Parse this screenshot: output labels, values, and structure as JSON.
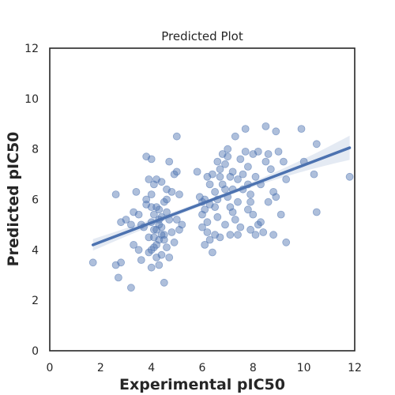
{
  "chart_data": {
    "type": "scatter",
    "title": "Predicted Plot",
    "xlabel": "Experimental pIC50",
    "ylabel": "Predicted pIC50",
    "xlim": [
      0,
      12
    ],
    "ylim": [
      0,
      12
    ],
    "xticks": [
      "0",
      "2",
      "4",
      "6",
      "8",
      "10",
      "12"
    ],
    "yticks": [
      "0",
      "2",
      "4",
      "6",
      "8",
      "10",
      "12"
    ],
    "grid": false,
    "colors": {
      "points": "#4c72b0",
      "line": "#4c72b0",
      "band": "#4c72b0"
    },
    "regression": {
      "x": [
        1.7,
        11.8
      ],
      "y": [
        4.2,
        8.05
      ],
      "ci_start": 0.15,
      "ci_end": 0.4
    },
    "points": [
      [
        1.7,
        3.5
      ],
      [
        2.6,
        6.2
      ],
      [
        2.8,
        5.1
      ],
      [
        2.8,
        3.5
      ],
      [
        2.6,
        3.4
      ],
      [
        2.7,
        2.9
      ],
      [
        3.0,
        5.2
      ],
      [
        3.2,
        5.0
      ],
      [
        3.2,
        2.5
      ],
      [
        3.3,
        4.2
      ],
      [
        3.3,
        5.5
      ],
      [
        3.4,
        6.3
      ],
      [
        3.5,
        5.4
      ],
      [
        3.5,
        4.0
      ],
      [
        3.6,
        3.6
      ],
      [
        3.7,
        4.9
      ],
      [
        3.8,
        5.8
      ],
      [
        3.9,
        4.5
      ],
      [
        3.9,
        3.9
      ],
      [
        3.8,
        7.7
      ],
      [
        3.9,
        6.8
      ],
      [
        4.0,
        5.1
      ],
      [
        4.0,
        7.6
      ],
      [
        4.0,
        3.3
      ],
      [
        4.0,
        6.2
      ],
      [
        4.1,
        6.6
      ],
      [
        4.1,
        4.5
      ],
      [
        4.2,
        4.8
      ],
      [
        4.3,
        5.0
      ],
      [
        4.3,
        5.6
      ],
      [
        4.2,
        4.2
      ],
      [
        4.4,
        4.6
      ],
      [
        4.4,
        4.9
      ],
      [
        4.4,
        5.3
      ],
      [
        4.5,
        5.9
      ],
      [
        4.5,
        4.4
      ],
      [
        4.5,
        2.7
      ],
      [
        4.6,
        6.0
      ],
      [
        4.6,
        4.1
      ],
      [
        4.7,
        5.2
      ],
      [
        4.6,
        5.5
      ],
      [
        4.7,
        3.7
      ],
      [
        4.8,
        4.7
      ],
      [
        4.8,
        6.3
      ],
      [
        4.9,
        7.0
      ],
      [
        4.9,
        4.3
      ],
      [
        5.0,
        8.5
      ],
      [
        5.0,
        7.1
      ],
      [
        5.0,
        5.2
      ],
      [
        5.1,
        4.8
      ],
      [
        5.1,
        6.2
      ],
      [
        5.2,
        5.0
      ],
      [
        4.3,
        4.4
      ],
      [
        4.2,
        5.7
      ],
      [
        4.1,
        4.1
      ],
      [
        4.4,
        3.8
      ],
      [
        4.3,
        3.4
      ],
      [
        4.6,
        6.4
      ],
      [
        4.7,
        7.5
      ],
      [
        3.8,
        6.0
      ],
      [
        4.0,
        5.7
      ],
      [
        4.1,
        5.4
      ],
      [
        4.2,
        6.8
      ],
      [
        3.6,
        5.0
      ],
      [
        4.3,
        5.2
      ],
      [
        4.4,
        6.7
      ],
      [
        4.5,
        4.6
      ],
      [
        4.2,
        3.7
      ],
      [
        4.0,
        4.0
      ],
      [
        4.1,
        4.8
      ],
      [
        5.8,
        7.1
      ],
      [
        5.9,
        6.1
      ],
      [
        6.0,
        5.4
      ],
      [
        6.0,
        4.9
      ],
      [
        6.1,
        6.0
      ],
      [
        6.1,
        4.2
      ],
      [
        6.2,
        5.1
      ],
      [
        6.2,
        4.7
      ],
      [
        6.3,
        6.6
      ],
      [
        6.3,
        5.8
      ],
      [
        6.4,
        7.0
      ],
      [
        6.4,
        3.9
      ],
      [
        6.5,
        5.7
      ],
      [
        6.5,
        6.3
      ],
      [
        6.6,
        7.5
      ],
      [
        6.6,
        5.3
      ],
      [
        6.7,
        4.5
      ],
      [
        6.7,
        6.9
      ],
      [
        6.8,
        7.8
      ],
      [
        6.8,
        6.6
      ],
      [
        6.9,
        5.0
      ],
      [
        6.9,
        7.4
      ],
      [
        7.0,
        6.1
      ],
      [
        7.0,
        8.0
      ],
      [
        7.1,
        4.6
      ],
      [
        7.1,
        5.7
      ],
      [
        7.2,
        6.4
      ],
      [
        7.2,
        7.1
      ],
      [
        7.3,
        5.2
      ],
      [
        7.3,
        8.5
      ],
      [
        7.4,
        6.8
      ],
      [
        7.4,
        5.9
      ],
      [
        7.5,
        7.6
      ],
      [
        7.5,
        4.9
      ],
      [
        7.6,
        6.4
      ],
      [
        7.7,
        8.8
      ],
      [
        7.7,
        7.9
      ],
      [
        7.8,
        5.6
      ],
      [
        7.8,
        7.3
      ],
      [
        7.9,
        6.2
      ],
      [
        7.9,
        4.8
      ],
      [
        8.0,
        7.8
      ],
      [
        8.0,
        5.4
      ],
      [
        8.1,
        6.9
      ],
      [
        8.1,
        4.6
      ],
      [
        8.2,
        7.9
      ],
      [
        8.3,
        5.1
      ],
      [
        8.3,
        6.6
      ],
      [
        8.4,
        4.7
      ],
      [
        8.5,
        8.9
      ],
      [
        8.5,
        7.5
      ],
      [
        8.6,
        5.9
      ],
      [
        8.7,
        7.2
      ],
      [
        8.8,
        4.6
      ],
      [
        8.9,
        8.7
      ],
      [
        8.9,
        6.1
      ],
      [
        9.0,
        7.9
      ],
      [
        9.1,
        5.4
      ],
      [
        9.2,
        7.5
      ],
      [
        9.3,
        6.8
      ],
      [
        9.3,
        4.3
      ],
      [
        9.9,
        8.8
      ],
      [
        10.0,
        7.5
      ],
      [
        10.4,
        7.0
      ],
      [
        10.5,
        8.2
      ],
      [
        10.5,
        5.5
      ],
      [
        11.8,
        6.9
      ],
      [
        6.1,
        5.6
      ],
      [
        6.3,
        4.4
      ],
      [
        6.6,
        6.0
      ],
      [
        7.0,
        7.7
      ],
      [
        7.6,
        7.0
      ],
      [
        7.9,
        5.9
      ],
      [
        8.2,
        5.0
      ],
      [
        6.9,
        6.4
      ],
      [
        6.2,
        6.9
      ],
      [
        7.4,
        4.6
      ],
      [
        6.0,
        5.9
      ],
      [
        8.6,
        7.8
      ],
      [
        7.2,
        5.5
      ],
      [
        6.5,
        4.6
      ],
      [
        7.8,
        6.6
      ],
      [
        8.8,
        6.3
      ],
      [
        6.7,
        7.2
      ],
      [
        7.1,
        6.9
      ]
    ]
  }
}
